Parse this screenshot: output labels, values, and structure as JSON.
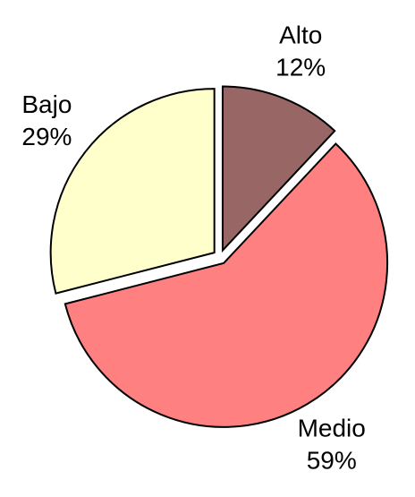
{
  "chart_data": {
    "type": "pie",
    "categories": [
      "Alto",
      "Medio",
      "Bajo"
    ],
    "values": [
      12,
      59,
      29
    ],
    "value_labels": [
      "12%",
      "59%",
      "29%"
    ],
    "colors": [
      "#996666",
      "#ff8080",
      "#ffffcc"
    ]
  }
}
